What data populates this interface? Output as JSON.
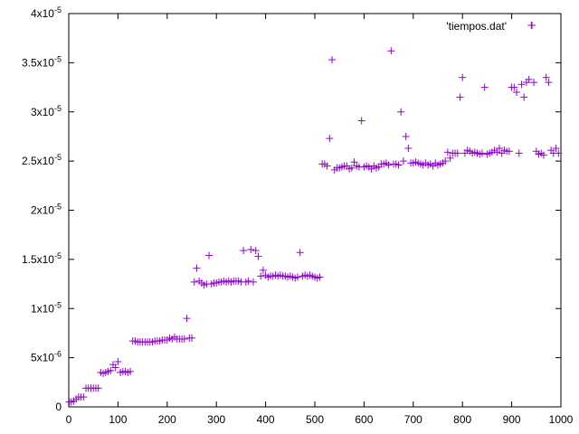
{
  "chart_data": {
    "type": "scatter",
    "title": "",
    "xlabel": "",
    "ylabel": "",
    "xlim": [
      0,
      1000
    ],
    "ylim": [
      0,
      4e-05
    ],
    "grid": false,
    "legend_position": "top-right",
    "x_ticks": [
      {
        "value": 0,
        "label": "0"
      },
      {
        "value": 100,
        "label": "100"
      },
      {
        "value": 200,
        "label": "200"
      },
      {
        "value": 300,
        "label": "300"
      },
      {
        "value": 400,
        "label": "400"
      },
      {
        "value": 500,
        "label": "500"
      },
      {
        "value": 600,
        "label": "600"
      },
      {
        "value": 700,
        "label": "700"
      },
      {
        "value": 800,
        "label": "800"
      },
      {
        "value": 900,
        "label": "900"
      },
      {
        "value": 1000,
        "label": "1000"
      }
    ],
    "y_ticks": [
      {
        "value": 0,
        "mantissa": "0",
        "exp": ""
      },
      {
        "value": 5e-06,
        "mantissa": "5x10",
        "exp": "-6"
      },
      {
        "value": 1e-05,
        "mantissa": "1x10",
        "exp": "-5"
      },
      {
        "value": 1.5e-05,
        "mantissa": "1.5x10",
        "exp": "-5"
      },
      {
        "value": 2e-05,
        "mantissa": "2x10",
        "exp": "-5"
      },
      {
        "value": 2.5e-05,
        "mantissa": "2.5x10",
        "exp": "-5"
      },
      {
        "value": 3e-05,
        "mantissa": "3x10",
        "exp": "-5"
      },
      {
        "value": 3.5e-05,
        "mantissa": "3.5x10",
        "exp": "-5"
      },
      {
        "value": 4e-05,
        "mantissa": "4x10",
        "exp": "-5"
      }
    ],
    "series": [
      {
        "name": "'tiempos.dat'",
        "color": "#9400d3",
        "marker": "plus",
        "points": [
          [
            1,
            5e-07
          ],
          [
            5,
            5e-07
          ],
          [
            10,
            6e-07
          ],
          [
            15,
            8e-07
          ],
          [
            20,
            1e-06
          ],
          [
            25,
            1e-06
          ],
          [
            30,
            1e-06
          ],
          [
            35,
            1.9e-06
          ],
          [
            40,
            1.9e-06
          ],
          [
            45,
            1.9e-06
          ],
          [
            50,
            1.9e-06
          ],
          [
            55,
            1.9e-06
          ],
          [
            60,
            1.9e-06
          ],
          [
            65,
            3.5e-06
          ],
          [
            70,
            3.4e-06
          ],
          [
            75,
            3.5e-06
          ],
          [
            80,
            3.6e-06
          ],
          [
            85,
            3.7e-06
          ],
          [
            90,
            4.3e-06
          ],
          [
            95,
            4e-06
          ],
          [
            100,
            4.6e-06
          ],
          [
            105,
            3.5e-06
          ],
          [
            110,
            3.6e-06
          ],
          [
            115,
            3.6e-06
          ],
          [
            120,
            3.5e-06
          ],
          [
            125,
            3.6e-06
          ],
          [
            130,
            6.7e-06
          ],
          [
            135,
            6.7e-06
          ],
          [
            140,
            6.6e-06
          ],
          [
            145,
            6.6e-06
          ],
          [
            150,
            6.6e-06
          ],
          [
            155,
            6.6e-06
          ],
          [
            160,
            6.6e-06
          ],
          [
            165,
            6.6e-06
          ],
          [
            170,
            6.6e-06
          ],
          [
            175,
            6.7e-06
          ],
          [
            180,
            6.7e-06
          ],
          [
            185,
            6.7e-06
          ],
          [
            190,
            6.8e-06
          ],
          [
            195,
            6.8e-06
          ],
          [
            200,
            6.8e-06
          ],
          [
            205,
            7e-06
          ],
          [
            210,
            6.9e-06
          ],
          [
            215,
            7.1e-06
          ],
          [
            220,
            6.9e-06
          ],
          [
            225,
            6.9e-06
          ],
          [
            230,
            6.9e-06
          ],
          [
            235,
            6.9e-06
          ],
          [
            240,
            9e-06
          ],
          [
            245,
            7e-06
          ],
          [
            250,
            7e-06
          ],
          [
            255,
            1.27e-05
          ],
          [
            260,
            1.41e-05
          ],
          [
            265,
            1.28e-05
          ],
          [
            270,
            1.26e-05
          ],
          [
            275,
            1.24e-05
          ],
          [
            280,
            1.25e-05
          ],
          [
            285,
            1.54e-05
          ],
          [
            290,
            1.25e-05
          ],
          [
            295,
            1.26e-05
          ],
          [
            300,
            1.26e-05
          ],
          [
            305,
            1.27e-05
          ],
          [
            310,
            1.27e-05
          ],
          [
            315,
            1.28e-05
          ],
          [
            320,
            1.27e-05
          ],
          [
            325,
            1.28e-05
          ],
          [
            330,
            1.27e-05
          ],
          [
            335,
            1.28e-05
          ],
          [
            340,
            1.28e-05
          ],
          [
            345,
            1.28e-05
          ],
          [
            350,
            1.27e-05
          ],
          [
            355,
            1.59e-05
          ],
          [
            360,
            1.27e-05
          ],
          [
            365,
            1.28e-05
          ],
          [
            370,
            1.6e-05
          ],
          [
            375,
            1.27e-05
          ],
          [
            380,
            1.59e-05
          ],
          [
            385,
            1.53e-05
          ],
          [
            390,
            1.33e-05
          ],
          [
            395,
            1.39e-05
          ],
          [
            400,
            1.34e-05
          ],
          [
            405,
            1.32e-05
          ],
          [
            410,
            1.33e-05
          ],
          [
            415,
            1.33e-05
          ],
          [
            420,
            1.34e-05
          ],
          [
            425,
            1.33e-05
          ],
          [
            430,
            1.34e-05
          ],
          [
            435,
            1.33e-05
          ],
          [
            440,
            1.33e-05
          ],
          [
            445,
            1.32e-05
          ],
          [
            450,
            1.33e-05
          ],
          [
            455,
            1.32e-05
          ],
          [
            460,
            1.31e-05
          ],
          [
            465,
            1.32e-05
          ],
          [
            470,
            1.57e-05
          ],
          [
            475,
            1.33e-05
          ],
          [
            480,
            1.34e-05
          ],
          [
            485,
            1.33e-05
          ],
          [
            490,
            1.34e-05
          ],
          [
            495,
            1.33e-05
          ],
          [
            500,
            1.32e-05
          ],
          [
            505,
            1.31e-05
          ],
          [
            510,
            1.32e-05
          ],
          [
            515,
            2.47e-05
          ],
          [
            520,
            2.47e-05
          ],
          [
            525,
            2.45e-05
          ],
          [
            530,
            2.73e-05
          ],
          [
            535,
            3.53e-05
          ],
          [
            540,
            2.41e-05
          ],
          [
            545,
            2.43e-05
          ],
          [
            550,
            2.43e-05
          ],
          [
            555,
            2.44e-05
          ],
          [
            560,
            2.45e-05
          ],
          [
            565,
            2.45e-05
          ],
          [
            570,
            2.42e-05
          ],
          [
            575,
            2.43e-05
          ],
          [
            580,
            2.49e-05
          ],
          [
            585,
            2.45e-05
          ],
          [
            590,
            2.44e-05
          ],
          [
            595,
            2.91e-05
          ],
          [
            600,
            2.44e-05
          ],
          [
            605,
            2.45e-05
          ],
          [
            610,
            2.44e-05
          ],
          [
            615,
            2.42e-05
          ],
          [
            620,
            2.45e-05
          ],
          [
            625,
            2.43e-05
          ],
          [
            630,
            2.44e-05
          ],
          [
            635,
            2.47e-05
          ],
          [
            640,
            2.47e-05
          ],
          [
            645,
            2.48e-05
          ],
          [
            650,
            2.46e-05
          ],
          [
            655,
            3.62e-05
          ],
          [
            660,
            2.47e-05
          ],
          [
            665,
            2.47e-05
          ],
          [
            670,
            2.46e-05
          ],
          [
            675,
            3e-05
          ],
          [
            680,
            2.5e-05
          ],
          [
            685,
            2.75e-05
          ],
          [
            690,
            2.63e-05
          ],
          [
            695,
            2.48e-05
          ],
          [
            700,
            2.48e-05
          ],
          [
            705,
            2.49e-05
          ],
          [
            710,
            2.48e-05
          ],
          [
            715,
            2.47e-05
          ],
          [
            720,
            2.46e-05
          ],
          [
            725,
            2.48e-05
          ],
          [
            730,
            2.46e-05
          ],
          [
            735,
            2.47e-05
          ],
          [
            740,
            2.45e-05
          ],
          [
            745,
            2.48e-05
          ],
          [
            750,
            2.46e-05
          ],
          [
            755,
            2.47e-05
          ],
          [
            760,
            2.48e-05
          ],
          [
            765,
            2.5e-05
          ],
          [
            770,
            2.59e-05
          ],
          [
            775,
            2.53e-05
          ],
          [
            780,
            2.58e-05
          ],
          [
            785,
            2.58e-05
          ],
          [
            790,
            2.58e-05
          ],
          [
            795,
            3.15e-05
          ],
          [
            800,
            3.35e-05
          ],
          [
            805,
            2.58e-05
          ],
          [
            810,
            2.61e-05
          ],
          [
            815,
            2.6e-05
          ],
          [
            820,
            2.58e-05
          ],
          [
            825,
            2.59e-05
          ],
          [
            830,
            2.58e-05
          ],
          [
            835,
            2.57e-05
          ],
          [
            840,
            2.58e-05
          ],
          [
            845,
            3.25e-05
          ],
          [
            850,
            2.57e-05
          ],
          [
            855,
            2.58e-05
          ],
          [
            860,
            2.59e-05
          ],
          [
            865,
            2.61e-05
          ],
          [
            870,
            2.59e-05
          ],
          [
            875,
            2.63e-05
          ],
          [
            880,
            2.58e-05
          ],
          [
            885,
            2.61e-05
          ],
          [
            890,
            2.6e-05
          ],
          [
            895,
            2.6e-05
          ],
          [
            900,
            3.25e-05
          ],
          [
            905,
            3.25e-05
          ],
          [
            910,
            3.2e-05
          ],
          [
            915,
            2.58e-05
          ],
          [
            920,
            3.28e-05
          ],
          [
            925,
            3.15e-05
          ],
          [
            930,
            3.3e-05
          ],
          [
            935,
            3.33e-05
          ],
          [
            940,
            3.88e-05
          ],
          [
            945,
            3.3e-05
          ],
          [
            950,
            2.6e-05
          ],
          [
            955,
            2.57e-05
          ],
          [
            960,
            2.58e-05
          ],
          [
            965,
            2.56e-05
          ],
          [
            970,
            3.35e-05
          ],
          [
            975,
            3.3e-05
          ],
          [
            980,
            2.61e-05
          ],
          [
            985,
            2.58e-05
          ],
          [
            990,
            2.63e-05
          ],
          [
            995,
            2.58e-05
          ]
        ]
      }
    ]
  }
}
